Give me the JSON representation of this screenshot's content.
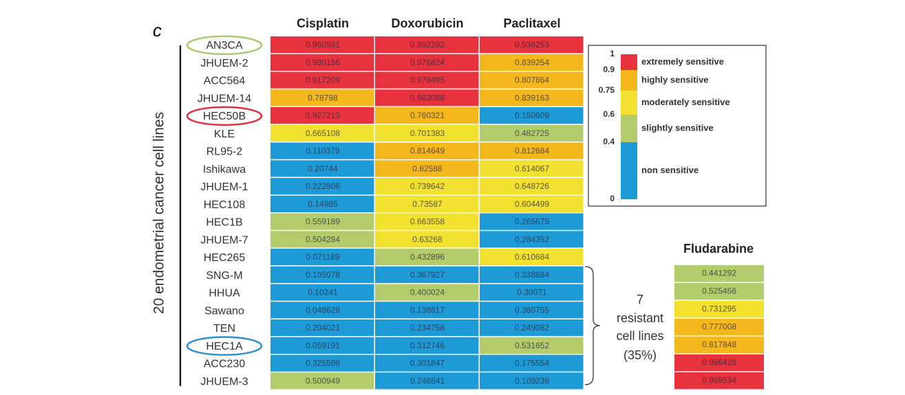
{
  "panel_label": "c",
  "y_label": "20 endometrial cancer cell lines",
  "columns": [
    "Cisplatin",
    "Doxorubicin",
    "Paclitaxel"
  ],
  "rows": [
    {
      "name": "AN3CA",
      "highlight": "#a9c96a",
      "values": [
        0.960981,
        0.992292,
        0.936253
      ]
    },
    {
      "name": "JHUEM-2",
      "values": [
        0.980156,
        0.976824,
        0.839254
      ]
    },
    {
      "name": "ACC564",
      "values": [
        0.917209,
        0.979495,
        0.807864
      ]
    },
    {
      "name": "JHUEM-14",
      "values": [
        0.78798,
        0.983088,
        0.839163
      ]
    },
    {
      "name": "HEC50B",
      "highlight": "#e03040",
      "values": [
        0.927213,
        0.760321,
        0.150609
      ]
    },
    {
      "name": "KLE",
      "values": [
        0.665108,
        0.701383,
        0.482725
      ]
    },
    {
      "name": "RL95-2",
      "values": [
        0.110379,
        0.814649,
        0.812684
      ]
    },
    {
      "name": "Ishikawa",
      "values": [
        0.20744,
        0.82588,
        0.614067
      ]
    },
    {
      "name": "JHUEM-1",
      "values": [
        0.222806,
        0.739642,
        0.648726
      ]
    },
    {
      "name": "HEC108",
      "values": [
        0.14985,
        0.73587,
        0.604499
      ]
    },
    {
      "name": "HEC1B",
      "values": [
        0.559189,
        0.663558,
        0.265675
      ]
    },
    {
      "name": "JHUEM-7",
      "values": [
        0.504284,
        0.63268,
        0.284352
      ]
    },
    {
      "name": "HEC265",
      "values": [
        0.071189,
        0.432896,
        0.610684
      ]
    },
    {
      "name": "SNG-M",
      "values": [
        0.105078,
        0.367927,
        0.338684
      ]
    },
    {
      "name": "HHUA",
      "values": [
        0.10241,
        0.400024,
        0.30071
      ]
    },
    {
      "name": "Sawano",
      "values": [
        0.048628,
        0.138617,
        0.360755
      ]
    },
    {
      "name": "TEN",
      "values": [
        0.204021,
        0.234758,
        0.249062
      ]
    },
    {
      "name": "HEC1A",
      "highlight": "#2e8fd0",
      "values": [
        0.059191,
        0.312746,
        0.531652
      ]
    },
    {
      "name": "ACC230",
      "values": [
        0.325589,
        0.301847,
        0.175554
      ]
    },
    {
      "name": "JHUEM-3",
      "values": [
        0.500949,
        0.246841,
        0.109238
      ]
    }
  ],
  "legend": {
    "ticks": [
      0,
      0.4,
      0.6,
      0.75,
      0.9,
      1
    ],
    "labels": [
      "non sensitive",
      "slightly sensitive",
      "moderately sensitive",
      "highly sensitive",
      "extremely sensitive"
    ],
    "colors": [
      "#1e9ad6",
      "#b4cd6c",
      "#f3e12f",
      "#f4b81d",
      "#e8333f"
    ]
  },
  "fludarabine": {
    "title": "Fludarabine",
    "values": [
      0.441292,
      0.525456,
      0.731295,
      0.777008,
      0.817848,
      0.966428,
      0.969534
    ]
  },
  "annotation": [
    "7",
    "resistant",
    "cell lines",
    "(35%)"
  ]
}
